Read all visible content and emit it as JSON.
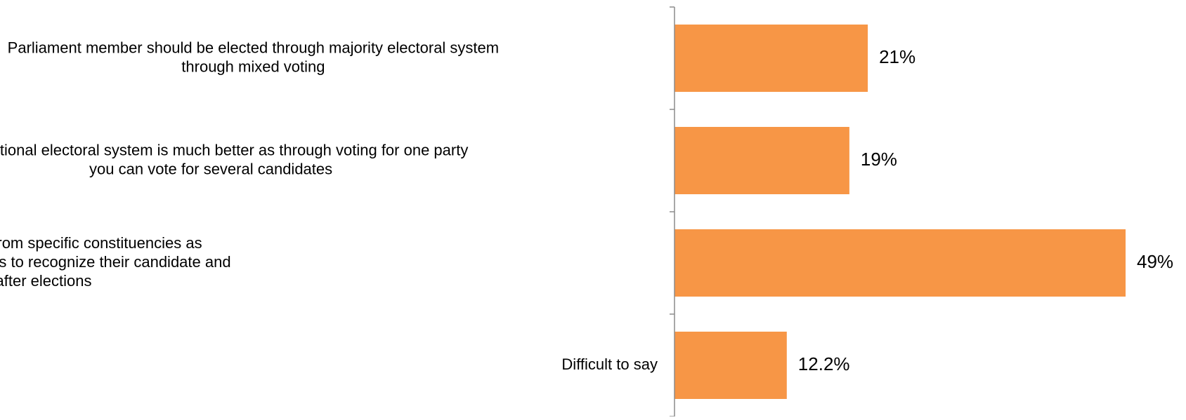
{
  "chart_data": {
    "type": "bar",
    "orientation": "horizontal",
    "categories": [
      [
        "Parliament member should be elected through majority electoral system",
        "through mixed voting"
      ],
      [
        "Proportional electoral system is much better as through voting for one party",
        "you can vote for several candidates"
      ],
      [
        "Parliament members should be elected from specific constituencies as",
        "elections in small constituencies allow citizens to recognize their candidate and",
        "control his/her activities after elections"
      ],
      [
        "Difficult to say"
      ]
    ],
    "values": [
      21,
      19,
      49,
      12.2
    ],
    "data_labels": [
      "21%",
      "19%",
      "49%",
      "12.2%"
    ],
    "title": "",
    "xlabel": "",
    "ylabel": "",
    "xlim": [
      0,
      49
    ],
    "grid": false,
    "legend": "none",
    "bar_color": "#F79646",
    "axis_color": "#8C8C8C",
    "text_color": "#000000"
  }
}
